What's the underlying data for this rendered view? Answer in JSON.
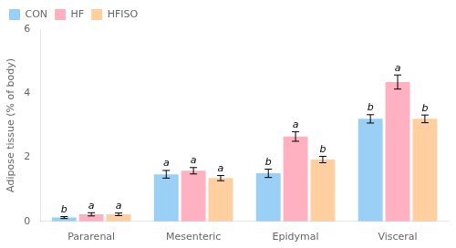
{
  "chart_data": {
    "type": "bar",
    "categories": [
      "Pararenal",
      "Mesenteric",
      "Epidymal",
      "Visceral"
    ],
    "series": [
      {
        "name": "CON",
        "values": [
          0.12,
          1.47,
          1.5,
          3.2
        ],
        "errors": [
          0.03,
          0.12,
          0.13,
          0.13
        ],
        "annotations": [
          "b",
          "a",
          "b",
          "b"
        ]
      },
      {
        "name": "HF",
        "values": [
          0.22,
          1.58,
          2.65,
          4.35
        ],
        "errors": [
          0.05,
          0.1,
          0.15,
          0.22
        ],
        "annotations": [
          "a",
          "a",
          "a",
          "a"
        ]
      },
      {
        "name": "HFISO",
        "values": [
          0.22,
          1.35,
          1.93,
          3.2
        ],
        "errors": [
          0.04,
          0.08,
          0.1,
          0.12
        ],
        "annotations": [
          "a",
          "a",
          "b",
          "b"
        ]
      }
    ],
    "ylabel": "Adipose tissue (% of body)",
    "ylim": [
      0,
      6
    ],
    "yticks": [
      0,
      2,
      4,
      6
    ],
    "grid": false,
    "legend": "upper left"
  }
}
